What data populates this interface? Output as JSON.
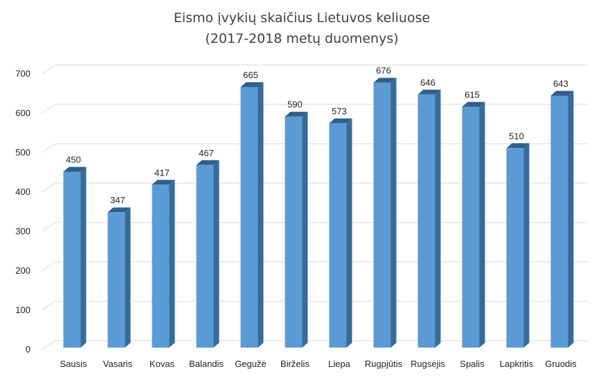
{
  "chart_data": {
    "type": "bar",
    "title": [
      "Eismo įvykių skaičius Lietuvos keliuose",
      "(2017-2018 metų duomenys)"
    ],
    "categories": [
      "Sausis",
      "Vasaris",
      "Kovas",
      "Balandis",
      "Gegužė",
      "Birželis",
      "Liepa",
      "Rugpjūtis",
      "Rugsėjis",
      "Spalis",
      "Lapkritis",
      "Gruodis"
    ],
    "values": [
      450,
      347,
      417,
      467,
      665,
      590,
      573,
      676,
      646,
      615,
      510,
      643
    ],
    "y_ticks": [
      0,
      100,
      200,
      300,
      400,
      500,
      600,
      700
    ],
    "ylim": [
      0,
      700
    ],
    "xlabel": "",
    "ylabel": "",
    "grid": true,
    "legend": "none",
    "colors": {
      "bar_front": "#5b9bd5",
      "bar_side": "#3a6a96",
      "bar_top": "#2f5f8a",
      "grid": "#d9d9d9",
      "text": "#222222",
      "title": "#404040"
    }
  }
}
